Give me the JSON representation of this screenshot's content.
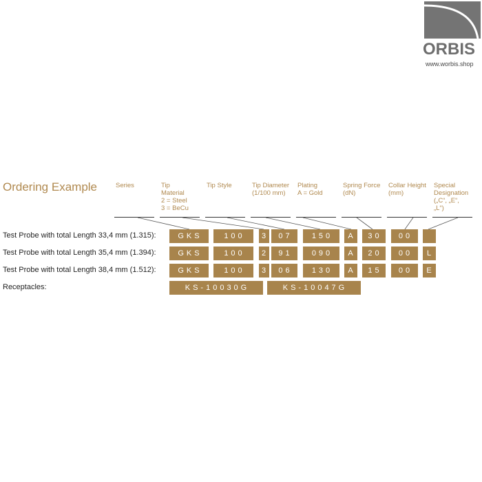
{
  "logo": {
    "name": "ORBIS",
    "url": "www.worbis.shop"
  },
  "title": "Ordering Example",
  "headers": [
    "Series",
    "Tip\nMaterial\n2 = Steel\n3 = BeCu",
    "Tip Style",
    "Tip Diameter\n(1/100 mm)",
    "Plating\nA = Gold",
    "Spring Force\n(dN)",
    "Collar Height\n(mm)",
    "Special\nDesignation\n(„C“, „E“,\n„L“)"
  ],
  "rows": [
    {
      "label": "Test Probe with total Length 33,4 mm (1.315):",
      "codes": [
        "GKS",
        "100",
        "3",
        "07",
        "150",
        "A",
        "30",
        "00",
        ""
      ]
    },
    {
      "label": "Test Probe with total Length 35,4 mm (1.394):",
      "codes": [
        "GKS",
        "100",
        "2",
        "91",
        "090",
        "A",
        "20",
        "00",
        "L"
      ]
    },
    {
      "label": "Test Probe with total Length 38,4 mm (1.512):",
      "codes": [
        "GKS",
        "100",
        "3",
        "06",
        "130",
        "A",
        "15",
        "00",
        "E"
      ]
    }
  ],
  "receptacles": {
    "label": "Receptacles:",
    "codes": [
      "KS-10030G",
      "KS-10047G"
    ]
  },
  "colors": {
    "accent": "#a8844c",
    "heading": "#b0894f"
  }
}
